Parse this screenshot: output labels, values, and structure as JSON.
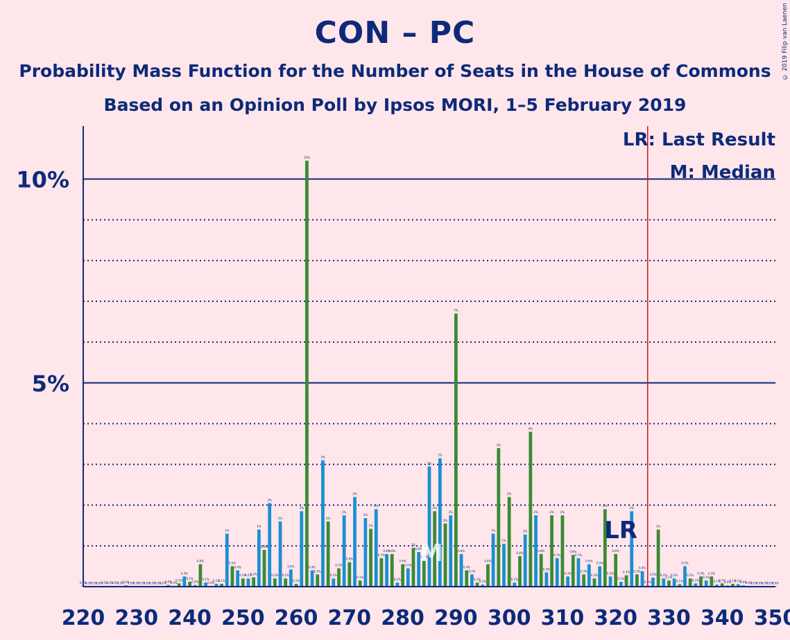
{
  "title": "CON – PC",
  "subtitle": "Probability Mass Function for the Number of Seats in the House of Commons",
  "subtitle2": "Based on an Opinion Poll by Ipsos MORI, 1–5 February 2019",
  "copyright": "© 2019 Filip van Laenen",
  "legend": {
    "lr": "LR: Last Result",
    "m": "M: Median"
  },
  "markers": {
    "lr_text": "LR",
    "m_text": "M",
    "last_result": 326,
    "lr_label_at": 322,
    "median": 286
  },
  "colors": {
    "background": "#ffe6ea",
    "text": "#0d2a7a",
    "green": "#3a8a34",
    "blue": "#1a8fd0",
    "last_result_line": "#d0102a"
  },
  "chart_data": {
    "type": "bar",
    "xlabel": "",
    "ylabel": "",
    "xlim": [
      220,
      350
    ],
    "ylim": [
      0,
      11.3
    ],
    "x_ticks": [
      "220",
      "230",
      "240",
      "250",
      "260",
      "270",
      "280",
      "290",
      "300",
      "310",
      "320",
      "330",
      "340",
      "350"
    ],
    "y_ticks": [
      {
        "value": 5,
        "label": "5%"
      },
      {
        "value": 10,
        "label": "10%"
      }
    ],
    "grid": "horizontal dotted every 1%, solid at 5% and 10%",
    "bars": [
      {
        "x": 220,
        "v": 0.02
      },
      {
        "x": 221,
        "v": 0.01
      },
      {
        "x": 222,
        "v": 0.01
      },
      {
        "x": 223,
        "v": 0.01
      },
      {
        "x": 224,
        "v": 0.02
      },
      {
        "x": 225,
        "v": 0.02
      },
      {
        "x": 226,
        "v": 0.02
      },
      {
        "x": 227,
        "v": 0.01
      },
      {
        "x": 228,
        "v": 0.03
      },
      {
        "x": 229,
        "v": 0.01
      },
      {
        "x": 230,
        "v": 0.01
      },
      {
        "x": 231,
        "v": 0.01
      },
      {
        "x": 232,
        "v": 0.01
      },
      {
        "x": 233,
        "v": 0.01
      },
      {
        "x": 234,
        "v": 0.01
      },
      {
        "x": 235,
        "v": 0.01
      },
      {
        "x": 236,
        "v": 0.04
      },
      {
        "x": 237,
        "v": 0.02
      },
      {
        "x": 238,
        "v": 0.08
      },
      {
        "x": 239,
        "v": 0.25
      },
      {
        "x": 240,
        "v": 0.12
      },
      {
        "x": 241,
        "v": 0.04
      },
      {
        "x": 242,
        "v": 0.55
      },
      {
        "x": 243,
        "v": 0.1
      },
      {
        "x": 244,
        "v": 0.02
      },
      {
        "x": 245,
        "v": 0.07
      },
      {
        "x": 246,
        "v": 0.07
      },
      {
        "x": 247,
        "v": 1.3
      },
      {
        "x": 248,
        "v": 0.5
      },
      {
        "x": 249,
        "v": 0.4
      },
      {
        "x": 250,
        "v": 0.2
      },
      {
        "x": 251,
        "v": 0.2
      },
      {
        "x": 252,
        "v": 0.23
      },
      {
        "x": 253,
        "v": 1.4
      },
      {
        "x": 254,
        "v": 0.9
      },
      {
        "x": 255,
        "v": 2.05
      },
      {
        "x": 256,
        "v": 0.2
      },
      {
        "x": 257,
        "v": 1.6
      },
      {
        "x": 258,
        "v": 0.2
      },
      {
        "x": 259,
        "v": 0.42
      },
      {
        "x": 260,
        "v": 0.07
      },
      {
        "x": 261,
        "v": 1.85
      },
      {
        "x": 262,
        "v": 10.45
      },
      {
        "x": 263,
        "v": 0.4
      },
      {
        "x": 264,
        "v": 0.3
      },
      {
        "x": 265,
        "v": 3.1
      },
      {
        "x": 266,
        "v": 1.6
      },
      {
        "x": 267,
        "v": 0.2
      },
      {
        "x": 268,
        "v": 0.45
      },
      {
        "x": 269,
        "v": 1.75
      },
      {
        "x": 270,
        "v": 0.6
      },
      {
        "x": 271,
        "v": 2.2
      },
      {
        "x": 272,
        "v": 0.15
      },
      {
        "x": 273,
        "v": 1.68
      },
      {
        "x": 274,
        "v": 1.42
      },
      {
        "x": 275,
        "v": 1.9
      },
      {
        "x": 276,
        "v": 0.7
      },
      {
        "x": 277,
        "v": 0.8
      },
      {
        "x": 278,
        "v": 0.8
      },
      {
        "x": 279,
        "v": 0.1
      },
      {
        "x": 280,
        "v": 0.55
      },
      {
        "x": 281,
        "v": 0.45
      },
      {
        "x": 282,
        "v": 0.95
      },
      {
        "x": 283,
        "v": 0.85
      },
      {
        "x": 284,
        "v": 0.65
      },
      {
        "x": 285,
        "v": 2.95
      },
      {
        "x": 286,
        "v": 1.85
      },
      {
        "x": 287,
        "v": 3.15
      },
      {
        "x": 288,
        "v": 1.55
      },
      {
        "x": 289,
        "v": 1.75
      },
      {
        "x": 290,
        "v": 6.7
      },
      {
        "x": 291,
        "v": 0.8
      },
      {
        "x": 292,
        "v": 0.4
      },
      {
        "x": 293,
        "v": 0.3
      },
      {
        "x": 294,
        "v": 0.1
      },
      {
        "x": 295,
        "v": 0.05
      },
      {
        "x": 296,
        "v": 0.55
      },
      {
        "x": 297,
        "v": 1.3
      },
      {
        "x": 298,
        "v": 3.4
      },
      {
        "x": 299,
        "v": 1.05
      },
      {
        "x": 300,
        "v": 2.2
      },
      {
        "x": 301,
        "v": 0.1
      },
      {
        "x": 302,
        "v": 0.75
      },
      {
        "x": 303,
        "v": 1.28
      },
      {
        "x": 304,
        "v": 3.8
      },
      {
        "x": 305,
        "v": 1.75
      },
      {
        "x": 306,
        "v": 0.8
      },
      {
        "x": 307,
        "v": 0.35
      },
      {
        "x": 308,
        "v": 1.75
      },
      {
        "x": 309,
        "v": 0.7
      },
      {
        "x": 310,
        "v": 1.75
      },
      {
        "x": 311,
        "v": 0.25
      },
      {
        "x": 312,
        "v": 0.78
      },
      {
        "x": 313,
        "v": 0.7
      },
      {
        "x": 314,
        "v": 0.3
      },
      {
        "x": 315,
        "v": 0.55
      },
      {
        "x": 316,
        "v": 0.2
      },
      {
        "x": 317,
        "v": 0.5
      },
      {
        "x": 318,
        "v": 1.9
      },
      {
        "x": 319,
        "v": 0.25
      },
      {
        "x": 320,
        "v": 0.8
      },
      {
        "x": 321,
        "v": 0.12
      },
      {
        "x": 322,
        "v": 0.28
      },
      {
        "x": 323,
        "v": 1.85
      },
      {
        "x": 324,
        "v": 0.3
      },
      {
        "x": 325,
        "v": 0.38
      },
      {
        "x": 326,
        "v": 0.03
      },
      {
        "x": 327,
        "v": 0.22
      },
      {
        "x": 328,
        "v": 1.4
      },
      {
        "x": 329,
        "v": 0.2
      },
      {
        "x": 330,
        "v": 0.15
      },
      {
        "x": 331,
        "v": 0.2
      },
      {
        "x": 332,
        "v": 0.06
      },
      {
        "x": 333,
        "v": 0.5
      },
      {
        "x": 334,
        "v": 0.2
      },
      {
        "x": 335,
        "v": 0.08
      },
      {
        "x": 336,
        "v": 0.25
      },
      {
        "x": 337,
        "v": 0.15
      },
      {
        "x": 338,
        "v": 0.25
      },
      {
        "x": 339,
        "v": 0.05
      },
      {
        "x": 340,
        "v": 0.08
      },
      {
        "x": 341,
        "v": 0.03
      },
      {
        "x": 342,
        "v": 0.07
      },
      {
        "x": 343,
        "v": 0.06
      },
      {
        "x": 344,
        "v": 0.03
      },
      {
        "x": 345,
        "v": 0.02
      },
      {
        "x": 346,
        "v": 0.01
      },
      {
        "x": 347,
        "v": 0.01
      },
      {
        "x": 348,
        "v": 0.01
      },
      {
        "x": 349,
        "v": 0.01
      },
      {
        "x": 350,
        "v": 0.01
      }
    ]
  }
}
